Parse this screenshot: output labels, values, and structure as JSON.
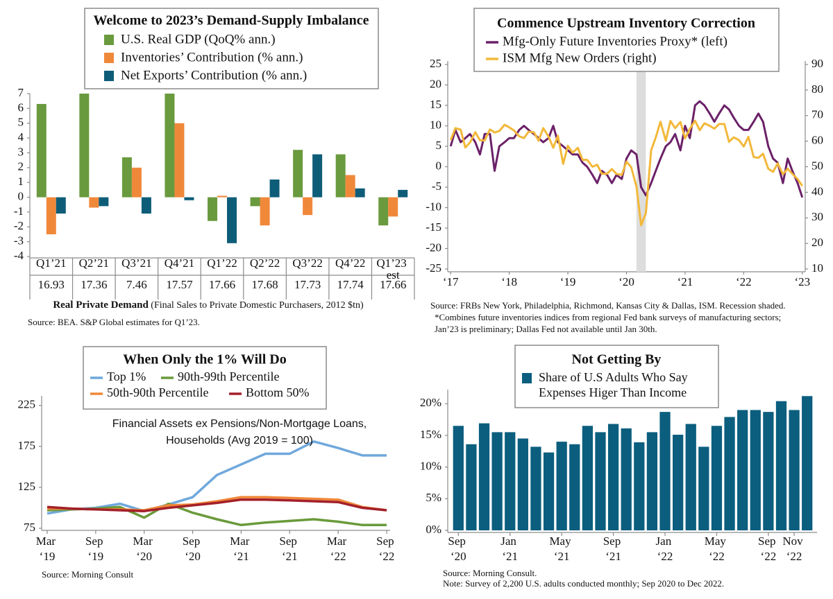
{
  "chart_data": [
    {
      "type": "bar",
      "title": "Welcome to 2023’s Demand-Supply Imbalance",
      "categories": [
        "Q1’21",
        "Q2’21",
        "Q3’21",
        "Q4’21",
        "Q1’22",
        "Q2’22",
        "Q3’22",
        "Q4’22",
        "Q1’23 est"
      ],
      "series": [
        {
          "name": "U.S. Real GDP (QoQ% ann.)",
          "color": "#6a9a3e",
          "values": [
            6.3,
            7.0,
            2.7,
            7.0,
            -1.6,
            -0.6,
            3.2,
            2.9,
            -1.9
          ]
        },
        {
          "name": "Inventories’ Contribution (% ann.)",
          "color": "#f0883a",
          "values": [
            -2.5,
            -0.7,
            2.0,
            5.0,
            0.1,
            -1.9,
            -1.2,
            1.5,
            -1.3
          ]
        },
        {
          "name": "Net Exports’ Contribution (% ann.)",
          "color": "#0e5d78",
          "values": [
            -1.1,
            -0.6,
            -1.1,
            -0.2,
            -3.1,
            1.2,
            2.9,
            0.6,
            0.5
          ]
        }
      ],
      "ylim": [
        -4,
        7
      ],
      "yticks": [
        -4,
        -3,
        -2,
        -1,
        0,
        1,
        2,
        3,
        4,
        5,
        6,
        7
      ],
      "row_values": [
        16.93,
        17.36,
        7.46,
        17.57,
        17.66,
        17.68,
        17.73,
        17.74,
        17.66
      ],
      "caption": {
        "bold": "Real Private Demand",
        "text": " (Final Sales to Private Domestic Purchasers, 2012 $tn)"
      },
      "source": [
        "Source: BEA. S&P Global estimates for Q1’23."
      ]
    },
    {
      "type": "line",
      "title": "Commence Upstream Inventory Correction",
      "x": [
        2017,
        2017.08,
        2017.17,
        2017.25,
        2017.33,
        2017.42,
        2017.5,
        2017.58,
        2017.67,
        2017.75,
        2017.83,
        2017.92,
        2018,
        2018.08,
        2018.17,
        2018.25,
        2018.33,
        2018.42,
        2018.5,
        2018.58,
        2018.67,
        2018.75,
        2018.83,
        2018.92,
        2019,
        2019.08,
        2019.17,
        2019.25,
        2019.33,
        2019.42,
        2019.5,
        2019.58,
        2019.67,
        2019.75,
        2019.83,
        2019.92,
        2020,
        2020.08,
        2020.17,
        2020.25,
        2020.33,
        2020.42,
        2020.5,
        2020.58,
        2020.67,
        2020.75,
        2020.83,
        2020.92,
        2021,
        2021.08,
        2021.17,
        2021.25,
        2021.33,
        2021.42,
        2021.5,
        2021.58,
        2021.67,
        2021.75,
        2021.83,
        2021.92,
        2022,
        2022.08,
        2022.17,
        2022.25,
        2022.33,
        2022.42,
        2022.5,
        2022.58,
        2022.67,
        2022.75,
        2022.83,
        2022.92,
        2023
      ],
      "series": [
        {
          "name": "Mfg-Only Future Inventories Proxy* (left)",
          "color": "#6b2168",
          "values": [
            5,
            9,
            6,
            7,
            8,
            6,
            3,
            8,
            8,
            -1,
            5,
            6,
            7,
            7,
            9,
            10,
            9,
            8,
            7,
            6,
            7,
            10,
            6,
            5,
            4,
            3,
            3,
            1,
            0,
            -2,
            -4,
            -1,
            -2,
            -4,
            -2,
            -3,
            2,
            4,
            3,
            -5,
            -7,
            -4,
            -1,
            2,
            5,
            6,
            8,
            4,
            10,
            7,
            15,
            16,
            15,
            13,
            11,
            13,
            15,
            14,
            12,
            10,
            9,
            9,
            11,
            13,
            11,
            5,
            2,
            1,
            -4,
            2,
            -1,
            -4,
            -7.5
          ]
        },
        {
          "name": "ISM Mfg New Orders (right)",
          "color": "#f2b83a",
          "axis": "y2",
          "values": [
            60.4,
            65.1,
            64.5,
            57.5,
            59.5,
            63.5,
            60.4,
            60.3,
            64.6,
            63.4,
            64,
            66.4,
            65.4,
            64.2,
            61.9,
            61.2,
            63.7,
            63.5,
            60.2,
            65.1,
            61.8,
            57.4,
            62.1,
            51.1,
            58.2,
            55.5,
            57.4,
            52.7,
            52.7,
            50,
            50.8,
            47.2,
            47.3,
            49.1,
            47.2,
            46.8,
            52,
            49.8,
            42.2,
            27.1,
            31.8,
            56.4,
            61.5,
            67.6,
            60.2,
            67.9,
            65.1,
            67.5,
            61.1,
            64.8,
            68,
            64.3,
            67,
            66,
            64.9,
            66.7,
            66.7,
            59.8,
            61.5,
            60.4,
            57.9,
            61.7,
            53.8,
            53.5,
            55.1,
            49.2,
            48,
            51.3,
            47.1,
            49.2,
            47.2,
            45.2,
            42.5
          ]
        }
      ],
      "xlim": [
        2016.95,
        2023.05
      ],
      "xticks": [
        {
          "value": 2017,
          "label": "‘17"
        },
        {
          "value": 2018,
          "label": "‘18"
        },
        {
          "value": 2019,
          "label": "‘19"
        },
        {
          "value": 2020,
          "label": "‘20"
        },
        {
          "value": 2021,
          "label": "‘21"
        },
        {
          "value": 2022,
          "label": "‘22"
        },
        {
          "value": 2023,
          "label": "‘23"
        }
      ],
      "ylim": [
        -25,
        25
      ],
      "yticks": [
        -25,
        -20,
        -15,
        -10,
        -5,
        0,
        5,
        10,
        15,
        20,
        25
      ],
      "y2lim": [
        10,
        90
      ],
      "y2ticks": [
        10,
        20,
        30,
        40,
        50,
        60,
        70,
        80,
        90
      ],
      "shade": [
        2020.17,
        2020.33
      ],
      "shade_color": "#dddddd",
      "source": [
        "Source: FRBs New York, Philadelphia, Richmond, Kansas City & Dallas, ISM. Recession shaded.",
        "*Combines future inventories indices from regional Fed bank surveys of manufacturing sectors;",
        "Jan’23 is preliminary; Dallas Fed not available until Jan 30th."
      ]
    },
    {
      "type": "line",
      "title": "When Only the 1% Will Do",
      "categories": [
        "Mar ‘19",
        null,
        "Sep ‘19",
        null,
        "Mar ‘20",
        null,
        "Sep ‘20",
        null,
        "Mar ‘21",
        null,
        "Sep ‘21",
        null,
        "Mar ‘22",
        null,
        "Sep ‘22"
      ],
      "series": [
        {
          "name": "Top 1%",
          "color": "#6fa8dc",
          "values": [
            93,
            98,
            100,
            105,
            96,
            104,
            113,
            140,
            153,
            166,
            166,
            181,
            173,
            164,
            164
          ]
        },
        {
          "name": "90th-99th Percentile",
          "color": "#6a9a3a",
          "values": [
            97,
            98,
            99,
            101,
            88,
            105,
            94,
            86,
            79,
            82,
            84,
            86,
            83,
            79,
            79
          ]
        },
        {
          "name": "50th-90th Percentile",
          "color": "#f0883a",
          "values": [
            99,
            99,
            98,
            98,
            97,
            103,
            104,
            108,
            113,
            113,
            112,
            111,
            110,
            101,
            97
          ]
        },
        {
          "name": "Bottom 50%",
          "color": "#a3202a",
          "values": [
            101,
            99,
            98,
            97,
            96,
            100,
            103,
            106,
            110,
            110,
            109,
            108,
            107,
            100,
            97
          ]
        }
      ],
      "ylim": [
        75,
        235
      ],
      "yticks": [
        75,
        125,
        175,
        225
      ],
      "annotation": [
        "Financial Assets ex Pensions/Non-Mortgage Loans,",
        "Households (Avg 2019 = 100)"
      ],
      "source": [
        "Source: Morning Consult"
      ]
    },
    {
      "type": "bar",
      "title": "Not Getting By",
      "categories": [
        "Sep ‘20",
        null,
        null,
        null,
        "Jan ‘21",
        null,
        null,
        null,
        "May ‘21",
        null,
        null,
        null,
        "Sep ‘21",
        null,
        null,
        null,
        "Jan ‘22",
        null,
        null,
        null,
        "May ‘22",
        null,
        null,
        null,
        "Sep ‘22",
        null,
        "Nov ‘22",
        null
      ],
      "series": [
        {
          "name": "Share of U.S Adults Who Say Expenses Higer Than Income",
          "color": "#0b5e7e",
          "values": [
            16.5,
            13.6,
            16.9,
            15.5,
            15.5,
            14.5,
            13.2,
            12.3,
            14.0,
            13.6,
            16.5,
            15.5,
            16.8,
            16.1,
            13.9,
            15.5,
            18.7,
            15.1,
            16.8,
            13.2,
            16.5,
            17.9,
            19.0,
            19.0,
            18.7,
            20.4,
            19.0,
            21.2
          ]
        }
      ],
      "ylim": [
        0,
        22
      ],
      "yticks": [
        {
          "value": 0,
          "label": "0%"
        },
        {
          "value": 5,
          "label": "5%"
        },
        {
          "value": 10,
          "label": "10%"
        },
        {
          "value": 15,
          "label": "15%"
        },
        {
          "value": 20,
          "label": "20%"
        }
      ],
      "source": [
        "Source: Morning Consult.",
        "Note: Survey of 2,200 U.S. adults conducted monthly; Sep 2020 to Dec 2022."
      ]
    }
  ]
}
